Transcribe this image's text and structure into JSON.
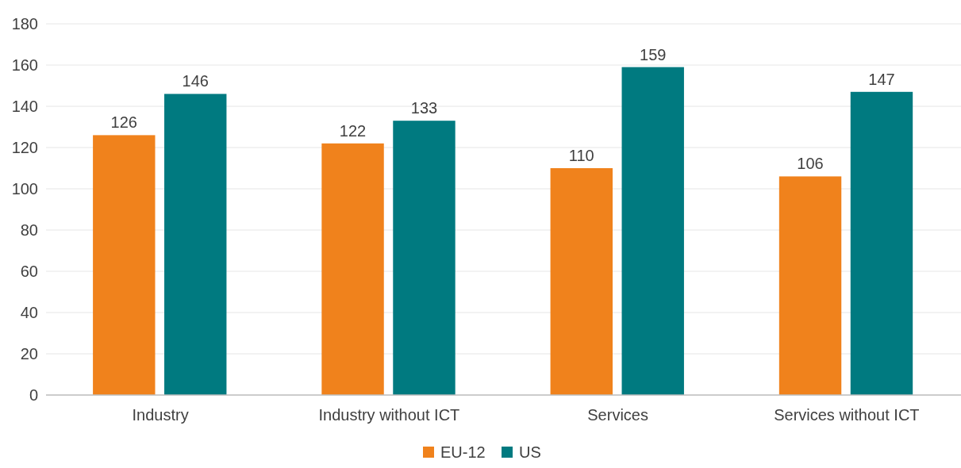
{
  "chart_data": {
    "type": "bar",
    "categories": [
      "Industry",
      "Industry without ICT",
      "Services",
      "Services without ICT"
    ],
    "series": [
      {
        "name": "EU-12",
        "color": "#f0821c",
        "values": [
          126,
          122,
          110,
          106
        ]
      },
      {
        "name": "US",
        "color": "#007a80",
        "values": [
          146,
          133,
          159,
          147
        ]
      }
    ],
    "ylim": [
      0,
      180
    ],
    "yticks": [
      0,
      20,
      40,
      60,
      80,
      100,
      120,
      140,
      160,
      180
    ],
    "grid": "y",
    "legend": "bottom",
    "data_labels": true
  }
}
